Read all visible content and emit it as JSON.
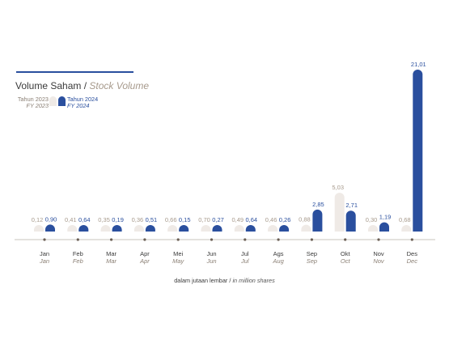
{
  "title": {
    "id": "Volume Saham",
    "separator": "/",
    "en": "Stock Volume"
  },
  "legend": {
    "series_2023_id": "Tahun 2023",
    "series_2023_en": "FY 2023",
    "series_2024_id": "Tahun 2024",
    "series_2024_en": "FY 2024"
  },
  "unit_note": {
    "id": "dalam jutaan lembar",
    "separator": "/",
    "en": "in million shares"
  },
  "colors": {
    "fy2023": "#efeae6",
    "fy2024": "#2a4f9e",
    "axis": "#b8b0a8",
    "text": "#3a3a3a"
  },
  "chart_data": {
    "type": "bar",
    "categories_id": [
      "Jan",
      "Feb",
      "Mar",
      "Apr",
      "Mei",
      "Jun",
      "Jul",
      "Ags",
      "Sep",
      "Okt",
      "Nov",
      "Des"
    ],
    "categories_en": [
      "Jan",
      "Feb",
      "Mar",
      "Apr",
      "May",
      "Jun",
      "Jul",
      "Aug",
      "Sep",
      "Oct",
      "Nov",
      "Dec"
    ],
    "series": [
      {
        "name": "Tahun 2023 / FY 2023",
        "values": [
          0.12,
          0.41,
          0.35,
          0.36,
          0.66,
          0.7,
          0.49,
          0.46,
          0.88,
          5.03,
          0.3,
          0.68
        ],
        "labels": [
          "0,12",
          "0,41",
          "0,35",
          "0,36",
          "0,66",
          "0,70",
          "0,49",
          "0,46",
          "0,88",
          "5,03",
          "0,30",
          "0,68"
        ]
      },
      {
        "name": "Tahun 2024 / FY 2024",
        "values": [
          0.9,
          0.64,
          0.19,
          0.51,
          0.15,
          0.27,
          0.64,
          0.26,
          2.85,
          2.71,
          1.19,
          21.01
        ],
        "labels": [
          "0,90",
          "0,64",
          "0,19",
          "0,51",
          "0,15",
          "0,27",
          "0,64",
          "0,26",
          "2,85",
          "2,71",
          "1,19",
          "21,01"
        ]
      }
    ],
    "ylim": [
      0,
      21.01
    ],
    "grid": false,
    "legend_position": "top-left"
  }
}
